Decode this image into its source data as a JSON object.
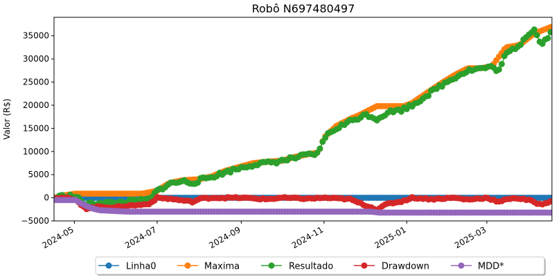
{
  "chart_data": {
    "type": "line",
    "title": "Robô N697480497",
    "xlabel": "",
    "ylabel": "Valor (R$)",
    "xlim": [
      "2024-04-16",
      "2025-04-18"
    ],
    "ylim": [
      -5000,
      39000
    ],
    "yticks": [
      -5000,
      0,
      5000,
      10000,
      15000,
      20000,
      25000,
      30000,
      35000
    ],
    "ytick_labels": [
      "−5000",
      "0",
      "5000",
      "10000",
      "15000",
      "20000",
      "25000",
      "30000",
      "35000"
    ],
    "xticks": [
      "2024-05-01",
      "2024-07-01",
      "2024-09-01",
      "2024-11-01",
      "2025-01-01",
      "2025-03-01"
    ],
    "xtick_labels": [
      "2024-05",
      "2024-07",
      "2024-09",
      "2024-11",
      "2025-01",
      "2025-03"
    ],
    "grid": false,
    "legend_position": "bottom-center",
    "series": [
      {
        "name": "Linha0",
        "color": "#1f77b4",
        "x": [
          "2024-04-16",
          "2025-04-18"
        ],
        "values": [
          0,
          0
        ]
      },
      {
        "name": "Maxima",
        "color": "#ff7f0e",
        "x": [
          "2024-04-16",
          "2024-04-25",
          "2024-05-02",
          "2024-06-20",
          "2024-07-01",
          "2024-07-10",
          "2024-07-20",
          "2024-08-01",
          "2024-08-10",
          "2024-08-20",
          "2024-09-01",
          "2024-09-10",
          "2024-09-20",
          "2024-10-01",
          "2024-10-10",
          "2024-10-20",
          "2024-10-28",
          "2024-11-01",
          "2024-11-10",
          "2024-11-20",
          "2024-11-28",
          "2024-12-10",
          "2024-12-20",
          "2024-12-30",
          "2025-01-05",
          "2025-01-15",
          "2025-01-25",
          "2025-02-05",
          "2025-02-15",
          "2025-02-25",
          "2025-03-05",
          "2025-03-15",
          "2025-03-25",
          "2025-04-05",
          "2025-04-18"
        ],
        "values": [
          0,
          600,
          900,
          900,
          1500,
          3200,
          3800,
          4000,
          4600,
          5800,
          6800,
          7500,
          7800,
          8000,
          8800,
          9400,
          9800,
          13000,
          15500,
          17000,
          18000,
          19800,
          19800,
          19800,
          20500,
          22500,
          24500,
          26500,
          28000,
          28000,
          28500,
          32500,
          33000,
          35500,
          37000
        ]
      },
      {
        "name": "Resultado",
        "color": "#2ca02c",
        "x": [
          "2024-04-16",
          "2024-04-25",
          "2024-05-02",
          "2024-05-10",
          "2024-05-20",
          "2024-05-30",
          "2024-06-10",
          "2024-06-20",
          "2024-06-26",
          "2024-07-01",
          "2024-07-10",
          "2024-07-20",
          "2024-07-28",
          "2024-08-01",
          "2024-08-10",
          "2024-08-20",
          "2024-09-01",
          "2024-09-10",
          "2024-09-20",
          "2024-10-01",
          "2024-10-10",
          "2024-10-20",
          "2024-10-28",
          "2024-11-01",
          "2024-11-10",
          "2024-11-20",
          "2024-11-28",
          "2024-12-03",
          "2024-12-10",
          "2024-12-18",
          "2024-12-28",
          "2025-01-05",
          "2025-01-15",
          "2025-01-25",
          "2025-02-05",
          "2025-02-15",
          "2025-02-25",
          "2025-03-05",
          "2025-03-10",
          "2025-03-15",
          "2025-03-25",
          "2025-03-30",
          "2025-04-05",
          "2025-04-10",
          "2025-04-18"
        ],
        "values": [
          0,
          500,
          200,
          -1500,
          -1000,
          -1200,
          -800,
          -600,
          -300,
          1500,
          3000,
          3600,
          3200,
          3800,
          4500,
          5500,
          6500,
          7200,
          7500,
          8000,
          8600,
          9200,
          9500,
          13000,
          15000,
          16500,
          17500,
          18000,
          17000,
          18500,
          19000,
          20000,
          22000,
          24000,
          26000,
          27500,
          28000,
          28200,
          27500,
          31000,
          33000,
          35000,
          36500,
          33000,
          36000
        ]
      },
      {
        "name": "Drawdown",
        "color": "#d62728",
        "x": [
          "2024-04-16",
          "2024-04-25",
          "2024-05-02",
          "2024-05-10",
          "2024-05-20",
          "2024-05-30",
          "2024-06-10",
          "2024-06-20",
          "2024-06-26",
          "2024-07-01",
          "2024-07-10",
          "2024-07-28",
          "2024-08-01",
          "2024-08-10",
          "2024-09-01",
          "2024-09-20",
          "2024-10-01",
          "2024-10-20",
          "2024-11-01",
          "2024-11-20",
          "2024-12-03",
          "2024-12-10",
          "2024-12-18",
          "2024-12-28",
          "2025-01-05",
          "2025-01-20",
          "2025-02-05",
          "2025-02-15",
          "2025-03-01",
          "2025-03-10",
          "2025-03-20",
          "2025-04-01",
          "2025-04-10",
          "2025-04-18"
        ],
        "values": [
          0,
          0,
          -600,
          -2300,
          -1900,
          -2100,
          -1700,
          -1500,
          -1200,
          0,
          -200,
          -900,
          -200,
          0,
          0,
          -300,
          0,
          -200,
          0,
          -300,
          -1800,
          -2500,
          -1300,
          -800,
          0,
          -300,
          0,
          -400,
          0,
          -900,
          0,
          -500,
          -1500,
          -600
        ]
      },
      {
        "name": "MDD*",
        "color": "#9467bd",
        "x": [
          "2024-04-16",
          "2024-05-02",
          "2024-05-06",
          "2024-05-10",
          "2024-05-15",
          "2024-05-20",
          "2024-06-10",
          "2024-12-05",
          "2024-12-12",
          "2025-04-18"
        ],
        "values": [
          -500,
          -500,
          -1200,
          -1800,
          -2400,
          -2700,
          -3000,
          -3000,
          -3200,
          -3200
        ]
      }
    ]
  }
}
